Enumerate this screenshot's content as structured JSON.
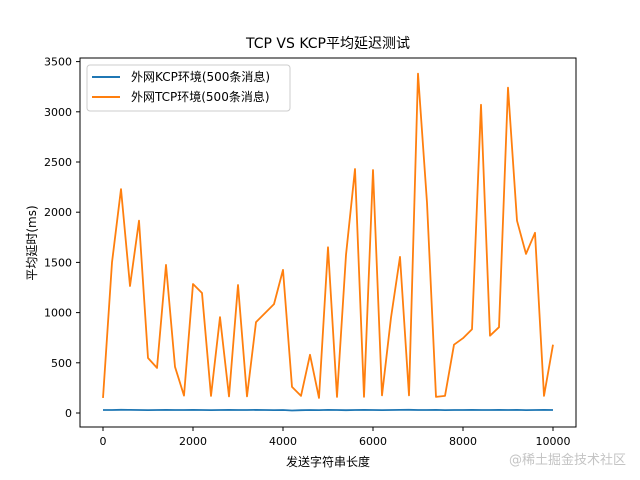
{
  "chart_data": {
    "type": "line",
    "title": "TCP VS KCP平均延迟测试",
    "xlabel": "发送字符串长度",
    "ylabel": "平均延时(ms)",
    "xlim": [
      -500,
      10500
    ],
    "ylim": [
      -150,
      3530
    ],
    "xticks": [
      0,
      2000,
      4000,
      6000,
      8000,
      10000
    ],
    "yticks": [
      0,
      500,
      1000,
      1500,
      2000,
      2500,
      3000,
      3500
    ],
    "grid": false,
    "legend_position": "upper left",
    "x": [
      0,
      200,
      400,
      600,
      800,
      1000,
      1200,
      1400,
      1600,
      1800,
      2000,
      2200,
      2400,
      2600,
      2800,
      3000,
      3200,
      3400,
      3600,
      3800,
      4000,
      4200,
      4400,
      4600,
      4800,
      5000,
      5200,
      5400,
      5600,
      5800,
      6000,
      6200,
      6400,
      6600,
      6800,
      7000,
      7200,
      7400,
      7600,
      7800,
      8000,
      8200,
      8400,
      8600,
      8800,
      9000,
      9200,
      9400,
      9600,
      9800,
      10000
    ],
    "series": [
      {
        "name": "外网KCP环境(500条消息)",
        "color": "#1f77b4",
        "values": [
          30,
          30,
          32,
          31,
          30,
          29,
          30,
          31,
          30,
          30,
          31,
          30,
          29,
          30,
          31,
          30,
          30,
          31,
          30,
          29,
          30,
          25,
          28,
          30,
          29,
          31,
          30,
          28,
          30,
          31,
          30,
          29,
          30,
          31,
          32,
          30,
          30,
          31,
          29,
          30,
          30,
          31,
          30,
          30,
          31,
          30,
          31,
          29,
          30,
          31,
          30
        ]
      },
      {
        "name": "外网TCP环境(500条消息)",
        "color": "#ff7f0e",
        "values": [
          150,
          1500,
          2230,
          1265,
          1915,
          548,
          449,
          1475,
          460,
          173,
          1285,
          1195,
          170,
          955,
          165,
          1275,
          165,
          905,
          995,
          1085,
          1425,
          260,
          170,
          580,
          150,
          1650,
          160,
          1575,
          2430,
          160,
          2420,
          175,
          950,
          1555,
          175,
          3380,
          2095,
          160,
          170,
          680,
          745,
          835,
          3070,
          770,
          855,
          3240,
          1915,
          1585,
          1795,
          170,
          680
        ]
      }
    ]
  },
  "watermark": "@稀土掘金技术社区"
}
